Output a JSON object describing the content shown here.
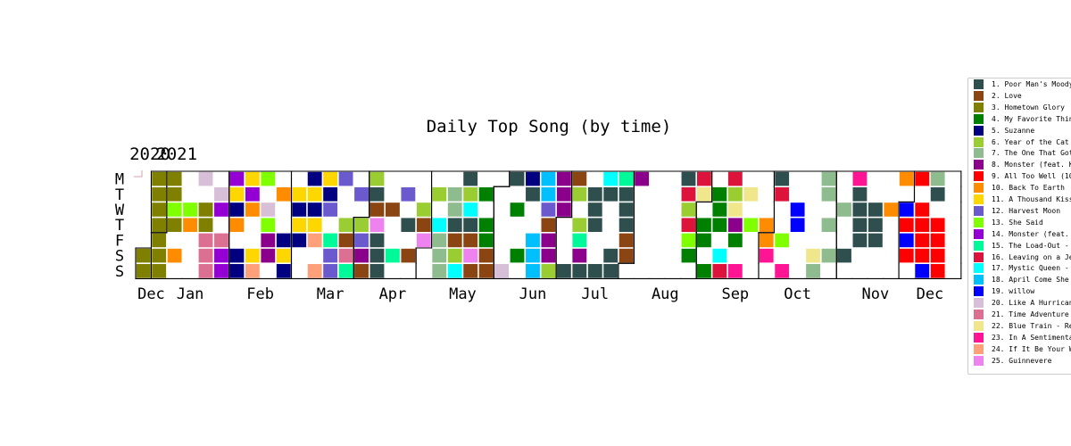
{
  "chart_data": {
    "type": "heatmap",
    "title": "Daily Top Song (by time)",
    "year_labels": [
      "2020",
      "2021"
    ],
    "weekday_labels": [
      "M",
      "T",
      "W",
      "T",
      "F",
      "S",
      "S"
    ],
    "month_labels": [
      "Dec",
      "Jan",
      "Feb",
      "Mar",
      "Apr",
      "May",
      "Jun",
      "Jul",
      "Aug",
      "Sep",
      "Oct",
      "Nov",
      "Dec"
    ],
    "date_range": [
      "2020-12-26",
      "2021-12-26"
    ],
    "legend_placement": "right",
    "legend": [
      {
        "label": "1. Poor Man's Moody Blues",
        "color": "#2f4f4f"
      },
      {
        "label": "2. Love",
        "color": "#8b4513"
      },
      {
        "label": "3. Hometown Glory",
        "color": "#808000"
      },
      {
        "label": "4. My Favorite Things",
        "color": "#008000"
      },
      {
        "label": "5. Suzanne",
        "color": "#000080"
      },
      {
        "label": "6. Year of the Cat",
        "color": "#9acd32"
      },
      {
        "label": "7. The One That Got Away",
        "color": "#8fbc8f"
      },
      {
        "label": "8. Monster (feat. Kanye West)",
        "color": "#8b008b"
      },
      {
        "label": "9. All Too Well (10 Minute Version)",
        "color": "#ff0000"
      },
      {
        "label": "10. Back To Earth",
        "color": "#ff8c00"
      },
      {
        "label": "11. A Thousand Kisses Deep",
        "color": "#ffd700"
      },
      {
        "label": "12. Harvest Moon",
        "color": "#6a5acd"
      },
      {
        "label": "13. She Said",
        "color": "#7fff00"
      },
      {
        "label": "14. Monster (feat. Justin Bieber)",
        "color": "#9400d3"
      },
      {
        "label": "15. The Load-Out - Stay",
        "color": "#00fa9a"
      },
      {
        "label": "16. Leaving on a Jet Plane",
        "color": "#dc143c"
      },
      {
        "label": "17. Mystic Queen - Remastered",
        "color": "#00ffff"
      },
      {
        "label": "18. April Come She Will",
        "color": "#00bfff"
      },
      {
        "label": "19. willow",
        "color": "#0000ff"
      },
      {
        "label": "20. Like A Hurricane",
        "color": "#d8bfd8"
      },
      {
        "label": "21. Time Adventure",
        "color": "#db7093"
      },
      {
        "label": "22. Blue Train - Remastered",
        "color": "#f0e68c"
      },
      {
        "label": "23. In A Sentimental Mood",
        "color": "#ff1493"
      },
      {
        "label": "24. If It Be Your Will",
        "color": "#ffa07a"
      },
      {
        "label": "25. Guinnevere",
        "color": "#ee82ee"
      }
    ],
    "weeks": [
      [
        0,
        0,
        0,
        0,
        0,
        3,
        3
      ],
      [
        3,
        3,
        3,
        3,
        3,
        3,
        3
      ],
      [
        3,
        3,
        13,
        3,
        0,
        10,
        0
      ],
      [
        0,
        0,
        13,
        10,
        0,
        0,
        0
      ],
      [
        20,
        0,
        3,
        3,
        21,
        21,
        21
      ],
      [
        0,
        20,
        14,
        0,
        21,
        14,
        14
      ],
      [
        14,
        11,
        5,
        10,
        0,
        5,
        5
      ],
      [
        11,
        14,
        10,
        0,
        0,
        11,
        24
      ],
      [
        13,
        0,
        20,
        13,
        8,
        8,
        0
      ],
      [
        0,
        10,
        0,
        0,
        5,
        11,
        5
      ],
      [
        0,
        11,
        5,
        11,
        5,
        0,
        0
      ],
      [
        5,
        11,
        5,
        11,
        24,
        0,
        24
      ],
      [
        11,
        5,
        12,
        0,
        15,
        12,
        12
      ],
      [
        12,
        0,
        0,
        6,
        2,
        21,
        15
      ],
      [
        0,
        12,
        0,
        6,
        12,
        8,
        2
      ],
      [
        6,
        1,
        2,
        25,
        1,
        1,
        1
      ],
      [
        0,
        0,
        2,
        0,
        0,
        15,
        0
      ],
      [
        0,
        12,
        0,
        1,
        0,
        2,
        0
      ],
      [
        0,
        0,
        6,
        2,
        25,
        0,
        0
      ],
      [
        0,
        6,
        0,
        17,
        7,
        7,
        7
      ],
      [
        0,
        7,
        7,
        1,
        2,
        6,
        17
      ],
      [
        1,
        6,
        17,
        1,
        2,
        25,
        2
      ],
      [
        0,
        4,
        0,
        4,
        4,
        2,
        2
      ],
      [
        0,
        0,
        0,
        0,
        0,
        0,
        20
      ],
      [
        1,
        0,
        4,
        0,
        0,
        4,
        0
      ],
      [
        5,
        1,
        0,
        0,
        18,
        18,
        18
      ],
      [
        18,
        18,
        12,
        2,
        8,
        8,
        6
      ],
      [
        8,
        8,
        8,
        0,
        0,
        0,
        1
      ],
      [
        2,
        6,
        0,
        6,
        15,
        8,
        1
      ],
      [
        0,
        1,
        1,
        1,
        0,
        0,
        1
      ],
      [
        17,
        1,
        0,
        0,
        0,
        1,
        1
      ],
      [
        15,
        1,
        1,
        1,
        2,
        2,
        0
      ],
      [
        8,
        0,
        0,
        0,
        0,
        0,
        0
      ],
      [
        0,
        0,
        0,
        0,
        0,
        0,
        0
      ],
      [
        0,
        0,
        0,
        0,
        0,
        0,
        0
      ],
      [
        1,
        16,
        6,
        16,
        13,
        4,
        0
      ],
      [
        16,
        22,
        0,
        4,
        4,
        0,
        4
      ],
      [
        0,
        4,
        4,
        4,
        0,
        17,
        16
      ],
      [
        16,
        6,
        22,
        8,
        4,
        0,
        23
      ],
      [
        0,
        22,
        0,
        13,
        0,
        0,
        0
      ],
      [
        0,
        0,
        0,
        10,
        10,
        23,
        0
      ],
      [
        1,
        16,
        0,
        0,
        13,
        0,
        23
      ],
      [
        0,
        0,
        19,
        19,
        0,
        0,
        0
      ],
      [
        0,
        0,
        0,
        0,
        0,
        22,
        7
      ],
      [
        7,
        7,
        0,
        7,
        0,
        7,
        0
      ],
      [
        0,
        0,
        7,
        0,
        0,
        1,
        0
      ],
      [
        23,
        1,
        1,
        1,
        1,
        0,
        0
      ],
      [
        0,
        0,
        1,
        1,
        1,
        0,
        0
      ],
      [
        0,
        0,
        10,
        0,
        0,
        0,
        0
      ],
      [
        10,
        0,
        19,
        9,
        19,
        9,
        0
      ],
      [
        9,
        0,
        9,
        9,
        9,
        9,
        19
      ],
      [
        7,
        1,
        0,
        9,
        9,
        9,
        9
      ]
    ]
  }
}
